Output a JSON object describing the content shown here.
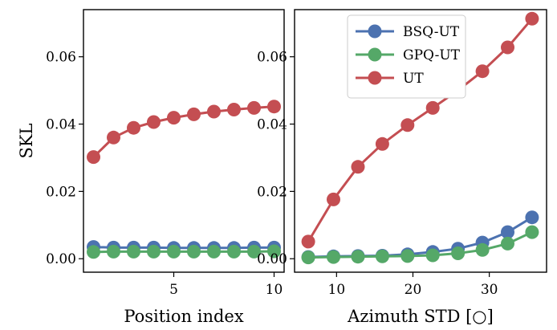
{
  "chart_data": [
    {
      "type": "line",
      "ylabel": "SKL",
      "xlabel": "Position index",
      "xlim": [
        0.5,
        10.5
      ],
      "ylim": [
        -0.004,
        0.074
      ],
      "xticks": [
        5,
        10
      ],
      "yticks": [
        0.0,
        0.02,
        0.04,
        0.06
      ],
      "yticklabels": [
        "0.00",
        "0.02",
        "0.04",
        "0.06"
      ],
      "xticklabels": [
        "5",
        "10"
      ],
      "x": [
        1,
        2,
        3,
        4,
        5,
        6,
        7,
        8,
        9,
        10
      ],
      "series": [
        {
          "name": "BSQ-UT",
          "color": "#4c72b0",
          "values": [
            0.0035,
            0.0033,
            0.0033,
            0.0033,
            0.0032,
            0.0032,
            0.0032,
            0.0032,
            0.0033,
            0.0033
          ]
        },
        {
          "name": "GPQ-UT",
          "color": "#55a868",
          "values": [
            0.002,
            0.0021,
            0.0021,
            0.0021,
            0.0021,
            0.0021,
            0.0021,
            0.0021,
            0.0021,
            0.0022
          ]
        },
        {
          "name": "UT",
          "color": "#c44e52",
          "values": [
            0.0302,
            0.036,
            0.0389,
            0.0406,
            0.0419,
            0.0429,
            0.0437,
            0.0443,
            0.0448,
            0.0452
          ]
        }
      ]
    },
    {
      "type": "line",
      "xlabel": "Azimuth STD [○]",
      "xlim": [
        4.5,
        37.5
      ],
      "ylim": [
        -0.004,
        0.074
      ],
      "xticks": [
        10,
        20,
        30
      ],
      "yticks": [
        0.0,
        0.02,
        0.04,
        0.06
      ],
      "yticklabels": [
        "0.00",
        "0.02",
        "0.04",
        "0.06"
      ],
      "xticklabels": [
        "10",
        "20",
        "30"
      ],
      "x": [
        6.3,
        9.6,
        12.8,
        16.0,
        19.3,
        22.6,
        25.9,
        29.1,
        32.4,
        35.6
      ],
      "legend": "top-left",
      "series": [
        {
          "name": "BSQ-UT",
          "color": "#4c72b0",
          "values": [
            0.0005,
            0.0007,
            0.0008,
            0.0009,
            0.0013,
            0.002,
            0.003,
            0.0048,
            0.0079,
            0.0123
          ]
        },
        {
          "name": "GPQ-UT",
          "color": "#55a868",
          "values": [
            0.0004,
            0.0005,
            0.0006,
            0.0007,
            0.0008,
            0.001,
            0.0016,
            0.0026,
            0.0045,
            0.0079
          ]
        },
        {
          "name": "UT",
          "color": "#c44e52",
          "values": [
            0.0051,
            0.0176,
            0.0273,
            0.0341,
            0.0397,
            0.0448,
            0.05,
            0.0557,
            0.0628,
            0.0713
          ]
        }
      ]
    }
  ]
}
